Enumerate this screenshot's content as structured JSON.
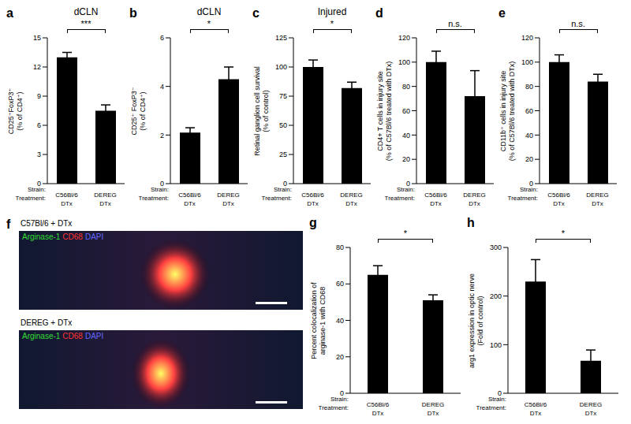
{
  "chart_data": [
    {
      "panel": "a",
      "type": "bar",
      "title": "dCLN",
      "y_label": [
        "CD25⁺FoxP3⁺",
        "(% of CD4⁺)"
      ],
      "row_labels": [
        "Strain:",
        "Treatment:"
      ],
      "categories": [
        "C56Bl/6",
        "DEREG"
      ],
      "treatments": [
        "DTx",
        "DTx"
      ],
      "values": [
        13,
        7.5
      ],
      "errors": [
        0.5,
        0.6
      ],
      "color": "#000000",
      "ylim": [
        0,
        15
      ],
      "yticks": [
        0,
        3,
        6,
        9,
        12,
        15
      ],
      "significance": "***"
    },
    {
      "panel": "b",
      "type": "bar",
      "title": "dCLN",
      "y_label": [
        "CD25⁺ FoxP3⁻",
        "(% of CD4⁺)"
      ],
      "row_labels": [
        "Strain:",
        "Treatment:"
      ],
      "categories": [
        "C56Bl/6",
        "DEREG"
      ],
      "treatments": [
        "DTx",
        "DTx"
      ],
      "values": [
        2.1,
        4.3
      ],
      "errors": [
        0.2,
        0.5
      ],
      "color": "#000000",
      "ylim": [
        0,
        6
      ],
      "yticks": [
        0,
        2,
        4,
        6
      ],
      "significance": "*"
    },
    {
      "panel": "c",
      "type": "bar",
      "title": "Injured",
      "y_label": [
        "Retinal ganglion cell survival",
        "(% of control)"
      ],
      "row_labels": [
        "Strain:",
        "Treatment:"
      ],
      "categories": [
        "C56Bl/6",
        "DEREG"
      ],
      "treatments": [
        "DTx",
        "DTx"
      ],
      "values": [
        100,
        82
      ],
      "errors": [
        6,
        5
      ],
      "color": "#000000",
      "ylim": [
        0,
        125
      ],
      "yticks": [
        0,
        25,
        50,
        75,
        100,
        125
      ],
      "significance": "*"
    },
    {
      "panel": "d",
      "type": "bar",
      "y_label": [
        "CD4+ T cells in injury site",
        "(% of C57Bl/6 treated with DTx)"
      ],
      "row_labels": [
        "Strain:",
        "Treatment:"
      ],
      "categories": [
        "C56Bl/6",
        "DEREG"
      ],
      "treatments": [
        "DTx",
        "DTx"
      ],
      "values": [
        100,
        72
      ],
      "errors": [
        9,
        21
      ],
      "color": "#000000",
      "ylim": [
        0,
        120
      ],
      "yticks": [
        0,
        20,
        40,
        60,
        80,
        100,
        120
      ],
      "significance": "n.s."
    },
    {
      "panel": "e",
      "type": "bar",
      "y_label": [
        "CD11b⁺ cells in injury site",
        "(% of C57Bl/6 treated with DTx)"
      ],
      "row_labels": [
        "Strain:",
        "Treatment:"
      ],
      "categories": [
        "C56Bl/6",
        "DEREG"
      ],
      "treatments": [
        "DTx",
        "DTx"
      ],
      "values": [
        100,
        84
      ],
      "errors": [
        6,
        6
      ],
      "color": "#000000",
      "ylim": [
        0,
        120
      ],
      "yticks": [
        0,
        20,
        40,
        60,
        80,
        100,
        120
      ],
      "significance": "n.s."
    },
    {
      "panel": "g",
      "type": "bar",
      "y_label": [
        "Percent colocalization of",
        "arginase-1 with CD68"
      ],
      "row_labels": [
        "Strain:",
        "Treatment:"
      ],
      "categories": [
        "C56Bl/6",
        "DEREG"
      ],
      "treatments": [
        "DTx",
        "DTx"
      ],
      "values": [
        65,
        51
      ],
      "errors": [
        5,
        3
      ],
      "color": "#000000",
      "ylim": [
        0,
        80
      ],
      "yticks": [
        0,
        20,
        40,
        60,
        80
      ],
      "significance": "*"
    },
    {
      "panel": "h",
      "type": "bar",
      "y_label": [
        "arg1 expression in optic nerve",
        "(Fold of control)"
      ],
      "row_labels": [
        "Strain:",
        "Treatment:"
      ],
      "categories": [
        "C56Bl/6",
        "DEREG"
      ],
      "treatments": [
        "DTx",
        "DTx"
      ],
      "values": [
        230,
        67
      ],
      "errors": [
        45,
        22
      ],
      "color": "#000000",
      "ylim": [
        0,
        300
      ],
      "yticks": [
        0,
        100,
        200,
        300
      ],
      "significance": "*"
    }
  ],
  "micrograph": {
    "panel": "f",
    "images": [
      {
        "label": "C57Bl/6 + DTx"
      },
      {
        "label": "DEREG + DTx"
      }
    ],
    "stains": [
      {
        "name": "Arginase-1",
        "color": "#33dd33"
      },
      {
        "name": "CD68",
        "color": "#ff3333"
      },
      {
        "name": "DAPI",
        "color": "#6666ff"
      }
    ]
  }
}
